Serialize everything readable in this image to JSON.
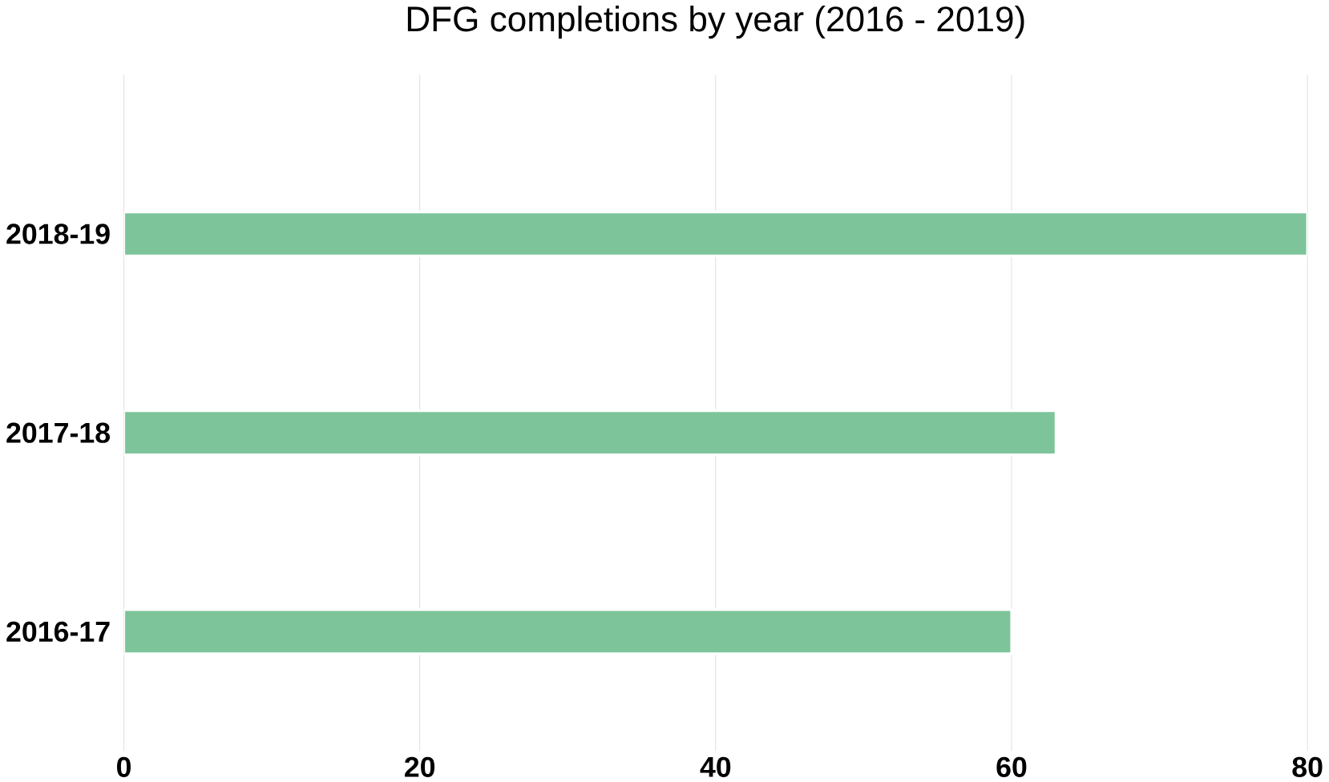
{
  "chart_data": {
    "type": "bar",
    "orientation": "horizontal",
    "title": "DFG completions by year (2016 - 2019)",
    "categories": [
      "2018-19",
      "2017-18",
      "2016-17"
    ],
    "values": [
      80,
      63,
      60
    ],
    "color": "#7dc49a",
    "xlim": [
      0,
      80
    ],
    "xticks": [
      0,
      20,
      40,
      60,
      80
    ],
    "grid": "x"
  }
}
